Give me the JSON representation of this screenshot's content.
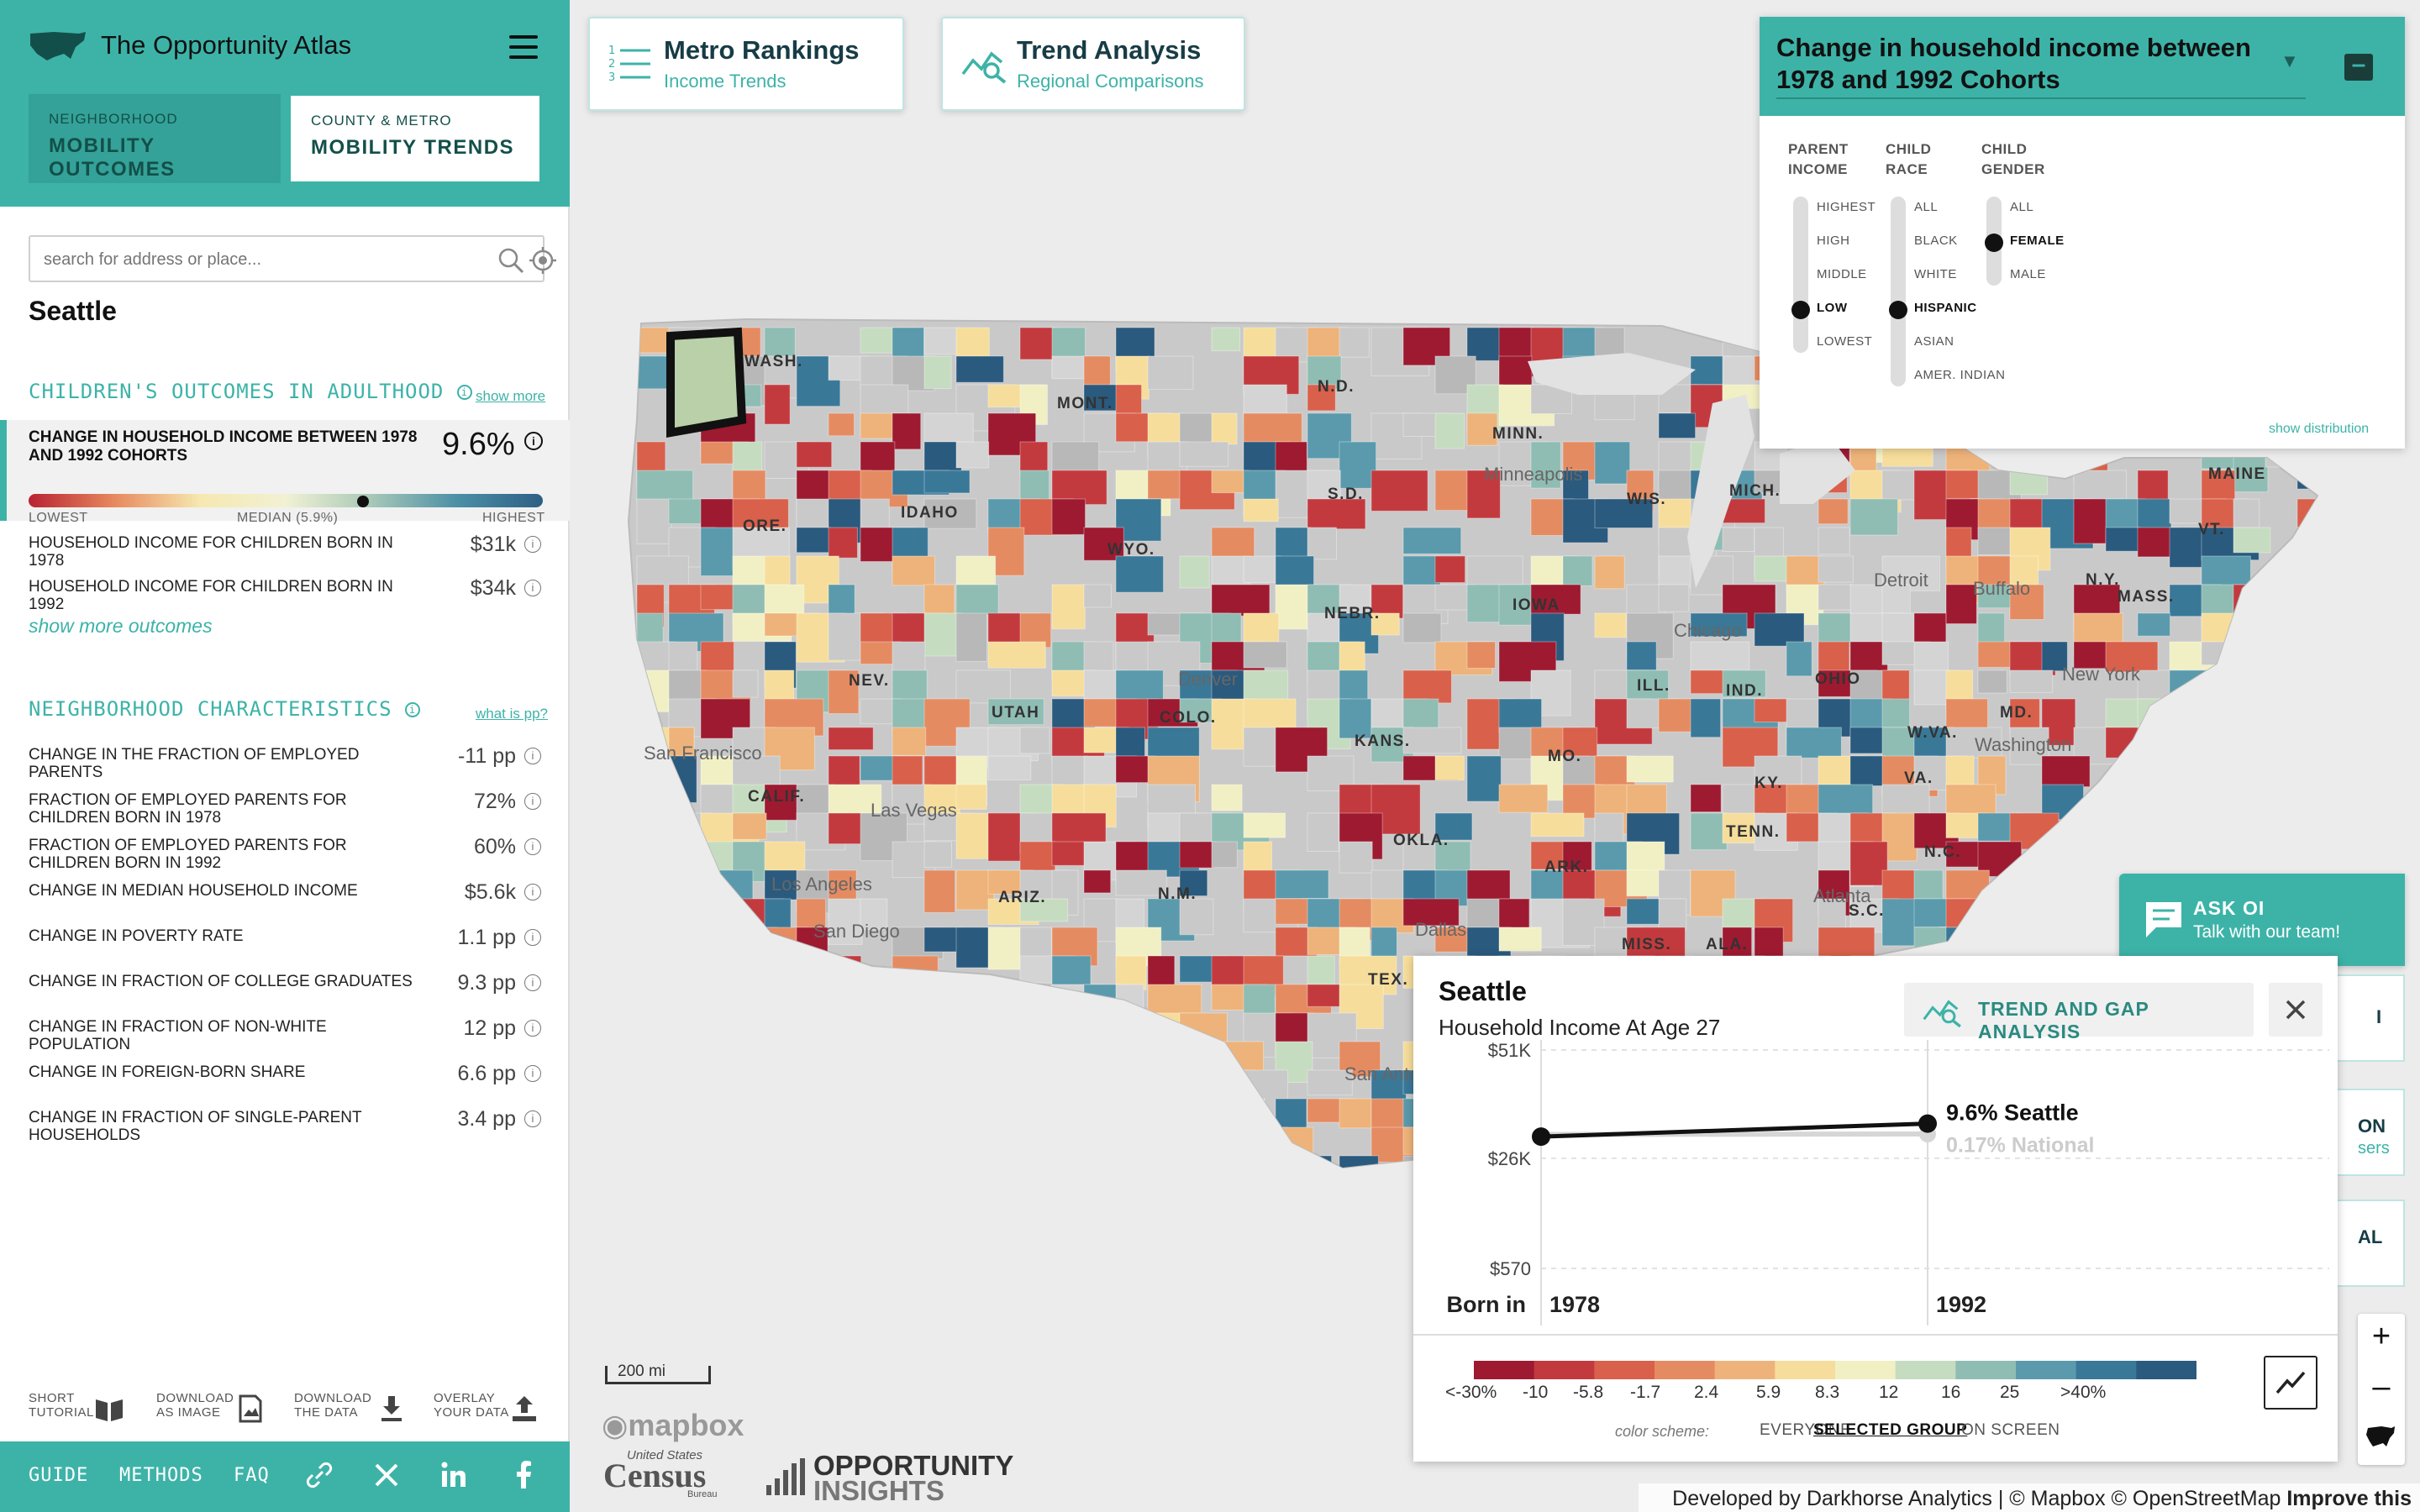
{
  "app": {
    "title": "The Opportunity Atlas"
  },
  "tabs": [
    {
      "small": "NEIGHBORHOOD",
      "large": "MOBILITY OUTCOMES"
    },
    {
      "small": "COUNTY & METRO",
      "large": "MOBILITY TRENDS"
    }
  ],
  "search": {
    "placeholder": "search for address or place..."
  },
  "place": "Seattle",
  "outcomes": {
    "heading": "CHILDREN'S OUTCOMES IN ADULTHOOD",
    "show_more": "show more",
    "highlight": {
      "label": "CHANGE IN HOUSEHOLD INCOME BETWEEN 1978 AND 1992 COHORTS",
      "value": "9.6%"
    },
    "grad_labels": {
      "low": "LOWEST",
      "median": "MEDIAN (5.9%)",
      "high": "HIGHEST"
    },
    "rows": [
      {
        "label": "HOUSEHOLD INCOME FOR CHILDREN BORN IN 1978",
        "value": "$31k"
      },
      {
        "label": "HOUSEHOLD INCOME FOR CHILDREN BORN IN 1992",
        "value": "$34k"
      }
    ],
    "show_more_outcomes": "show more outcomes"
  },
  "characteristics": {
    "heading": "NEIGHBORHOOD CHARACTERISTICS",
    "what_is": "what is pp?",
    "rows": [
      {
        "label": "CHANGE IN THE FRACTION OF EMPLOYED PARENTS",
        "value": "-11 pp"
      },
      {
        "label": "FRACTION OF EMPLOYED PARENTS FOR CHILDREN BORN IN 1978",
        "value": "72%"
      },
      {
        "label": "FRACTION OF EMPLOYED PARENTS FOR CHILDREN BORN IN 1992",
        "value": "60%"
      },
      {
        "label": "CHANGE IN MEDIAN HOUSEHOLD INCOME",
        "value": "$5.6k"
      },
      {
        "label": "CHANGE IN POVERTY RATE",
        "value": "1.1 pp"
      },
      {
        "label": "CHANGE IN FRACTION OF COLLEGE GRADUATES",
        "value": "9.3 pp"
      },
      {
        "label": "CHANGE IN FRACTION OF NON-WHITE POPULATION",
        "value": "12 pp"
      },
      {
        "label": "CHANGE IN FOREIGN-BORN SHARE",
        "value": "6.6 pp"
      },
      {
        "label": "CHANGE IN FRACTION OF SINGLE-PARENT HOUSEHOLDS",
        "value": "3.4 pp"
      }
    ]
  },
  "tools": [
    {
      "l1": "SHORT",
      "l2": "TUTORIAL"
    },
    {
      "l1": "DOWNLOAD",
      "l2": "AS IMAGE"
    },
    {
      "l1": "DOWNLOAD",
      "l2": "THE DATA"
    },
    {
      "l1": "OVERLAY",
      "l2": "YOUR DATA"
    }
  ],
  "footer": {
    "guide": "GUIDE",
    "methods": "METHODS",
    "faq": "FAQ"
  },
  "cards": [
    {
      "title": "Metro Rankings",
      "sub": "Income Trends"
    },
    {
      "title": "Trend Analysis",
      "sub": "Regional Comparisons"
    }
  ],
  "filter": {
    "title": "Change in household income between 1978 and 1992 Cohorts",
    "cols": [
      {
        "h1": "PARENT",
        "h2": "INCOME",
        "options": [
          "HIGHEST",
          "HIGH",
          "MIDDLE",
          "LOW",
          "LOWEST"
        ],
        "selected": 3
      },
      {
        "h1": "CHILD",
        "h2": "RACE",
        "options": [
          "ALL",
          "BLACK",
          "WHITE",
          "HISPANIC",
          "ASIAN",
          "AMER. INDIAN"
        ],
        "selected": 3
      },
      {
        "h1": "CHILD",
        "h2": "GENDER",
        "options": [
          "ALL",
          "FEMALE",
          "MALE"
        ],
        "selected": 1
      }
    ],
    "show_distribution": "show distribution"
  },
  "map_labels": {
    "states": [
      "WASH.",
      "MONT.",
      "N.D.",
      "MINN.",
      "S.D.",
      "IDAHO",
      "ORE.",
      "WYO.",
      "WIS.",
      "MICH.",
      "MAINE",
      "VT.",
      "N.Y.",
      "MASS.",
      "NEBR.",
      "IOWA",
      "NEV.",
      "UTAH",
      "COLO.",
      "ILL.",
      "IND.",
      "OHIO",
      "KANS.",
      "MO.",
      "KY.",
      "W.VA.",
      "VA.",
      "MD.",
      "CALIF.",
      "OKLA.",
      "TENN.",
      "N.C.",
      "ARK.",
      "ARIZ.",
      "N.M.",
      "S.C.",
      "TEX.",
      "MISS.",
      "ALA."
    ],
    "cities": [
      "Minneapolis",
      "Detroit",
      "Buffalo",
      "Chicago",
      "New York",
      "Denver",
      "San Francisco",
      "Washington",
      "Las Vegas",
      "Los Angeles",
      "San Diego",
      "Atlanta",
      "Dallas",
      "San Anto"
    ]
  },
  "ask": {
    "title": "ASK OI",
    "sub": "Talk with our team!"
  },
  "side_cards": [
    "I",
    "ON",
    "sers",
    "AL"
  ],
  "detail": {
    "place": "Seattle",
    "subtitle": "Household Income At Age 27",
    "trend_button": "TREND AND GAP ANALYSIS",
    "y_ticks": [
      "$51K",
      "$26K",
      "$570"
    ],
    "born_in": "Born in",
    "series_label_local": "9.6% Seattle",
    "series_label_national": "0.17% National"
  },
  "chart_data": {
    "type": "line",
    "title": "Household Income At Age 27",
    "xlabel": "Born in",
    "x": [
      1978,
      1992
    ],
    "yticks": [
      570,
      26000,
      51000
    ],
    "ylim": [
      570,
      51000
    ],
    "series": [
      {
        "name": "Seattle",
        "values": [
          31000,
          34000
        ]
      },
      {
        "name": "National",
        "values": [
          31500,
          31600
        ]
      }
    ]
  },
  "legend": {
    "labels": [
      "<-30%",
      "-10",
      "-5.8",
      "-1.7",
      "2.4",
      "5.9",
      "8.3",
      "12",
      "16",
      "25",
      ">40%"
    ],
    "colors": [
      "#9e1a31",
      "#c33a3e",
      "#d9604b",
      "#e58b62",
      "#eeb37a",
      "#f6dd9b",
      "#f1f0c4",
      "#c6dcc0",
      "#8fbdb3",
      "#5a9aac",
      "#3a7898",
      "#2a5a7e"
    ],
    "scheme_label": "color scheme:",
    "options": [
      "EVERYONE",
      "SELECTED GROUP",
      "ON SCREEN"
    ],
    "selected": 1
  },
  "scale": "200 mi",
  "mapbox": "mapbox",
  "census": {
    "l1": "United States",
    "l2": "Census",
    "l3": "Bureau"
  },
  "oi": {
    "l1": "OPPORTUNITY",
    "l2": "INSIGHTS"
  },
  "attribution": {
    "text": "Developed by Darkhorse Analytics | © Mapbox © OpenStreetMap",
    "improve": "Improve this map"
  }
}
